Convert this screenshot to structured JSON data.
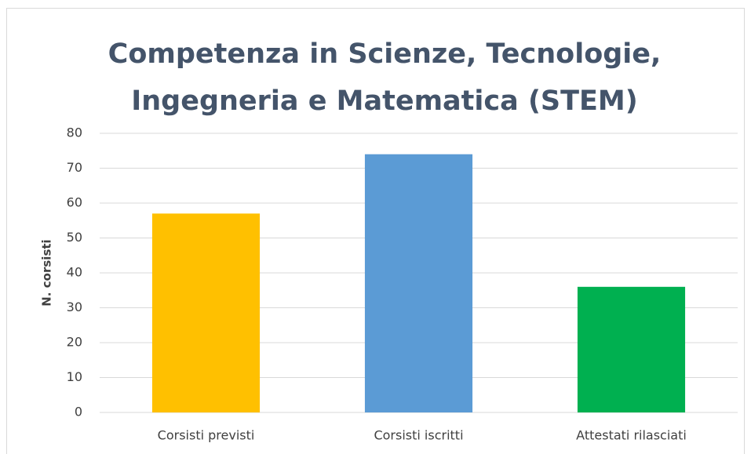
{
  "chart_data": {
    "type": "bar",
    "title": [
      "Competenza in Scienze, Tecnologie,",
      "Ingegneria e Matematica (STEM)"
    ],
    "y_label": "N. corsisti",
    "categories": [
      "Corsisti previsti",
      "Corsisti iscritti",
      "Attestati rilasciati"
    ],
    "values": [
      57,
      74,
      36
    ],
    "colors": [
      "#ffc000",
      "#5b9bd5",
      "#00b050"
    ],
    "ylim": [
      0,
      80
    ],
    "yticks": [
      0,
      10,
      20,
      30,
      40,
      50,
      60,
      70,
      80
    ],
    "grid": true
  }
}
